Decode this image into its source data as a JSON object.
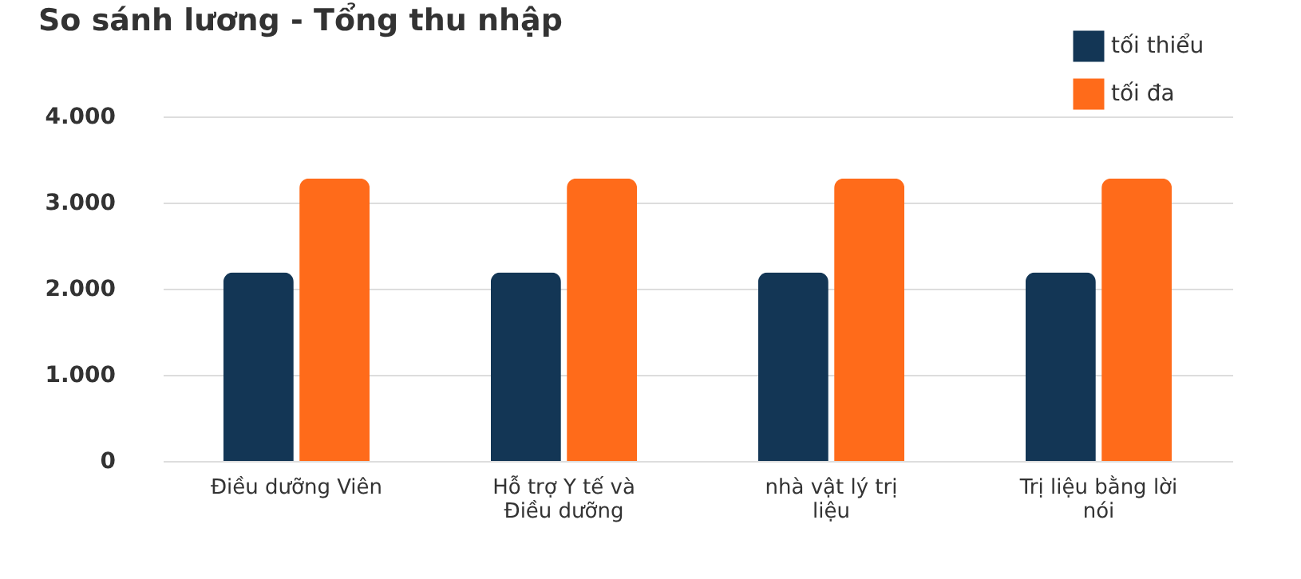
{
  "chart_data": {
    "type": "bar",
    "title": "So sánh lương - Tổng thu nhập",
    "categories": [
      "Điều dưỡng Viên",
      "Hỗ trợ Y tế và Điều dưỡng",
      "nhà vật lý trị liệu",
      "Trị liệu bằng lời nói"
    ],
    "series": [
      {
        "name": "tối thiểu",
        "color": "#133655",
        "values": [
          2190,
          2190,
          2190,
          2190
        ]
      },
      {
        "name": "tối đa",
        "color": "#ff6b1a",
        "values": [
          3280,
          3280,
          3280,
          3280
        ]
      }
    ],
    "ylim": [
      0,
      4000
    ],
    "yticks": [
      {
        "value": 0,
        "label": "0"
      },
      {
        "value": 1000,
        "label": "1.000"
      },
      {
        "value": 2000,
        "label": "2.000"
      },
      {
        "value": 3000,
        "label": "3.000"
      },
      {
        "value": 4000,
        "label": "4.000"
      }
    ],
    "grid": "y",
    "legend": "top right"
  }
}
